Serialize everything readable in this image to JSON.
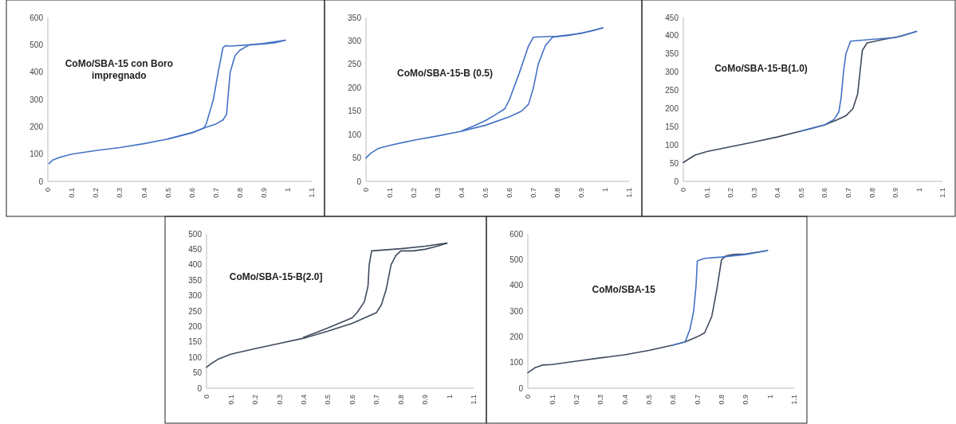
{
  "chart_data": [
    {
      "type": "line",
      "title": "CoMo/SBA-15 con Boro impregnado",
      "xlim": [
        0,
        1.1
      ],
      "xticks": [
        0,
        0.1,
        0.2,
        0.3,
        0.4,
        0.5,
        0.6,
        0.7,
        0.8,
        0.9,
        1,
        1.1
      ],
      "ylim": [
        0,
        600
      ],
      "yticks": [
        0,
        100,
        200,
        300,
        400,
        500,
        600
      ],
      "series": [
        {
          "color": "#4472c4",
          "x": [
            0.005,
            0.02,
            0.05,
            0.1,
            0.2,
            0.3,
            0.4,
            0.5,
            0.6,
            0.65,
            0.7,
            0.73,
            0.745,
            0.75,
            0.76,
            0.78,
            0.8,
            0.84,
            0.9,
            0.95,
            0.99
          ],
          "values": [
            65,
            78,
            88,
            100,
            113,
            124,
            138,
            155,
            178,
            195,
            210,
            225,
            245,
            300,
            400,
            460,
            480,
            500,
            503,
            508,
            517
          ]
        },
        {
          "color": "#4472c4",
          "x": [
            0.99,
            0.9,
            0.84,
            0.76,
            0.74,
            0.73,
            0.71,
            0.69,
            0.66,
            0.65,
            0.6,
            0.5
          ],
          "values": [
            517,
            505,
            500,
            495,
            497,
            490,
            400,
            300,
            210,
            195,
            178,
            155
          ]
        }
      ]
    },
    {
      "type": "line",
      "title": "CoMo/SBA-15-B (0.5)",
      "xlim": [
        0,
        1.1
      ],
      "xticks": [
        0,
        0.1,
        0.2,
        0.3,
        0.4,
        0.5,
        0.6,
        0.7,
        0.8,
        0.9,
        1,
        1.1
      ],
      "ylim": [
        0,
        350
      ],
      "yticks": [
        0,
        50,
        100,
        150,
        200,
        250,
        300,
        350
      ],
      "series": [
        {
          "color": "#4472c4",
          "x": [
            0,
            0.02,
            0.05,
            0.1,
            0.2,
            0.3,
            0.4,
            0.5,
            0.6,
            0.65,
            0.68,
            0.7,
            0.72,
            0.75,
            0.78,
            0.85,
            0.9,
            0.95,
            0.99
          ],
          "values": [
            50,
            60,
            70,
            77,
            88,
            97,
            107,
            120,
            138,
            150,
            165,
            200,
            250,
            290,
            308,
            312,
            317,
            322,
            328
          ]
        },
        {
          "color": "#4472c4",
          "x": [
            0.99,
            0.9,
            0.8,
            0.7,
            0.68,
            0.64,
            0.6,
            0.58,
            0.55,
            0.5,
            0.45,
            0.4
          ],
          "values": [
            328,
            316,
            310,
            308,
            290,
            230,
            175,
            155,
            145,
            130,
            118,
            108
          ]
        }
      ]
    },
    {
      "type": "line",
      "title": "CoMo/SBA-15-B(1.0)",
      "xlim": [
        0,
        1.1
      ],
      "xticks": [
        0,
        0.1,
        0.2,
        0.3,
        0.4,
        0.5,
        0.6,
        0.7,
        0.8,
        0.9,
        1,
        1.1
      ],
      "ylim": [
        0,
        450
      ],
      "yticks": [
        0,
        50,
        100,
        150,
        200,
        250,
        300,
        350,
        400,
        450
      ],
      "series": [
        {
          "color": "#3f4a5c",
          "x": [
            0,
            0.02,
            0.05,
            0.1,
            0.2,
            0.3,
            0.4,
            0.5,
            0.6,
            0.65,
            0.69,
            0.72,
            0.74,
            0.75,
            0.76,
            0.78,
            0.85,
            0.92,
            0.99
          ],
          "values": [
            52,
            60,
            72,
            82,
            95,
            108,
            122,
            138,
            155,
            168,
            180,
            200,
            240,
            300,
            360,
            380,
            390,
            398,
            412
          ]
        },
        {
          "color": "#4472c4",
          "x": [
            0.99,
            0.9,
            0.8,
            0.71,
            0.69,
            0.68,
            0.67,
            0.66,
            0.64,
            0.6,
            0.5
          ],
          "values": [
            412,
            395,
            390,
            385,
            350,
            300,
            230,
            190,
            170,
            155,
            138
          ]
        }
      ]
    },
    {
      "type": "line",
      "title": "CoMo/SBA-15-B(2.0]",
      "xlim": [
        0,
        1.1
      ],
      "xticks": [
        0,
        0.1,
        0.2,
        0.3,
        0.4,
        0.5,
        0.6,
        0.7,
        0.8,
        0.9,
        1,
        1.1
      ],
      "ylim": [
        0,
        500
      ],
      "yticks": [
        0,
        50,
        100,
        150,
        200,
        250,
        300,
        350,
        400,
        450,
        500
      ],
      "series": [
        {
          "color": "#3f4a5c",
          "x": [
            0,
            0.02,
            0.05,
            0.1,
            0.2,
            0.3,
            0.4,
            0.5,
            0.6,
            0.7,
            0.72,
            0.74,
            0.76,
            0.78,
            0.8,
            0.85,
            0.9,
            0.95,
            0.99
          ],
          "values": [
            68,
            80,
            95,
            110,
            128,
            145,
            162,
            185,
            210,
            245,
            270,
            320,
            400,
            430,
            445,
            445,
            450,
            460,
            470
          ]
        },
        {
          "color": "#3f4a5c",
          "x": [
            0.99,
            0.9,
            0.8,
            0.68,
            0.67,
            0.665,
            0.65,
            0.62,
            0.6,
            0.5,
            0.45,
            0.4
          ],
          "values": [
            470,
            460,
            452,
            445,
            400,
            330,
            280,
            245,
            228,
            195,
            180,
            165
          ]
        }
      ]
    },
    {
      "type": "line",
      "title": "CoMo/SBA-15",
      "xlim": [
        0,
        1.1
      ],
      "xticks": [
        0,
        0.1,
        0.2,
        0.3,
        0.4,
        0.5,
        0.6,
        0.7,
        0.8,
        0.9,
        1,
        1.1
      ],
      "ylim": [
        0,
        600
      ],
      "yticks": [
        0,
        100,
        200,
        300,
        400,
        500,
        600
      ],
      "series": [
        {
          "color": "#3f4a5c",
          "x": [
            0,
            0.03,
            0.06,
            0.1,
            0.2,
            0.3,
            0.4,
            0.5,
            0.6,
            0.65,
            0.7,
            0.73,
            0.76,
            0.78,
            0.8,
            0.82,
            0.85,
            0.9,
            0.99
          ],
          "values": [
            60,
            80,
            90,
            92,
            105,
            118,
            130,
            147,
            168,
            180,
            200,
            215,
            280,
            380,
            500,
            515,
            520,
            522,
            535
          ]
        },
        {
          "color": "#4472c4",
          "x": [
            0.99,
            0.9,
            0.8,
            0.73,
            0.7,
            0.695,
            0.685,
            0.67,
            0.65,
            0.6
          ],
          "values": [
            535,
            520,
            510,
            505,
            495,
            400,
            300,
            230,
            180,
            168
          ]
        }
      ]
    }
  ]
}
